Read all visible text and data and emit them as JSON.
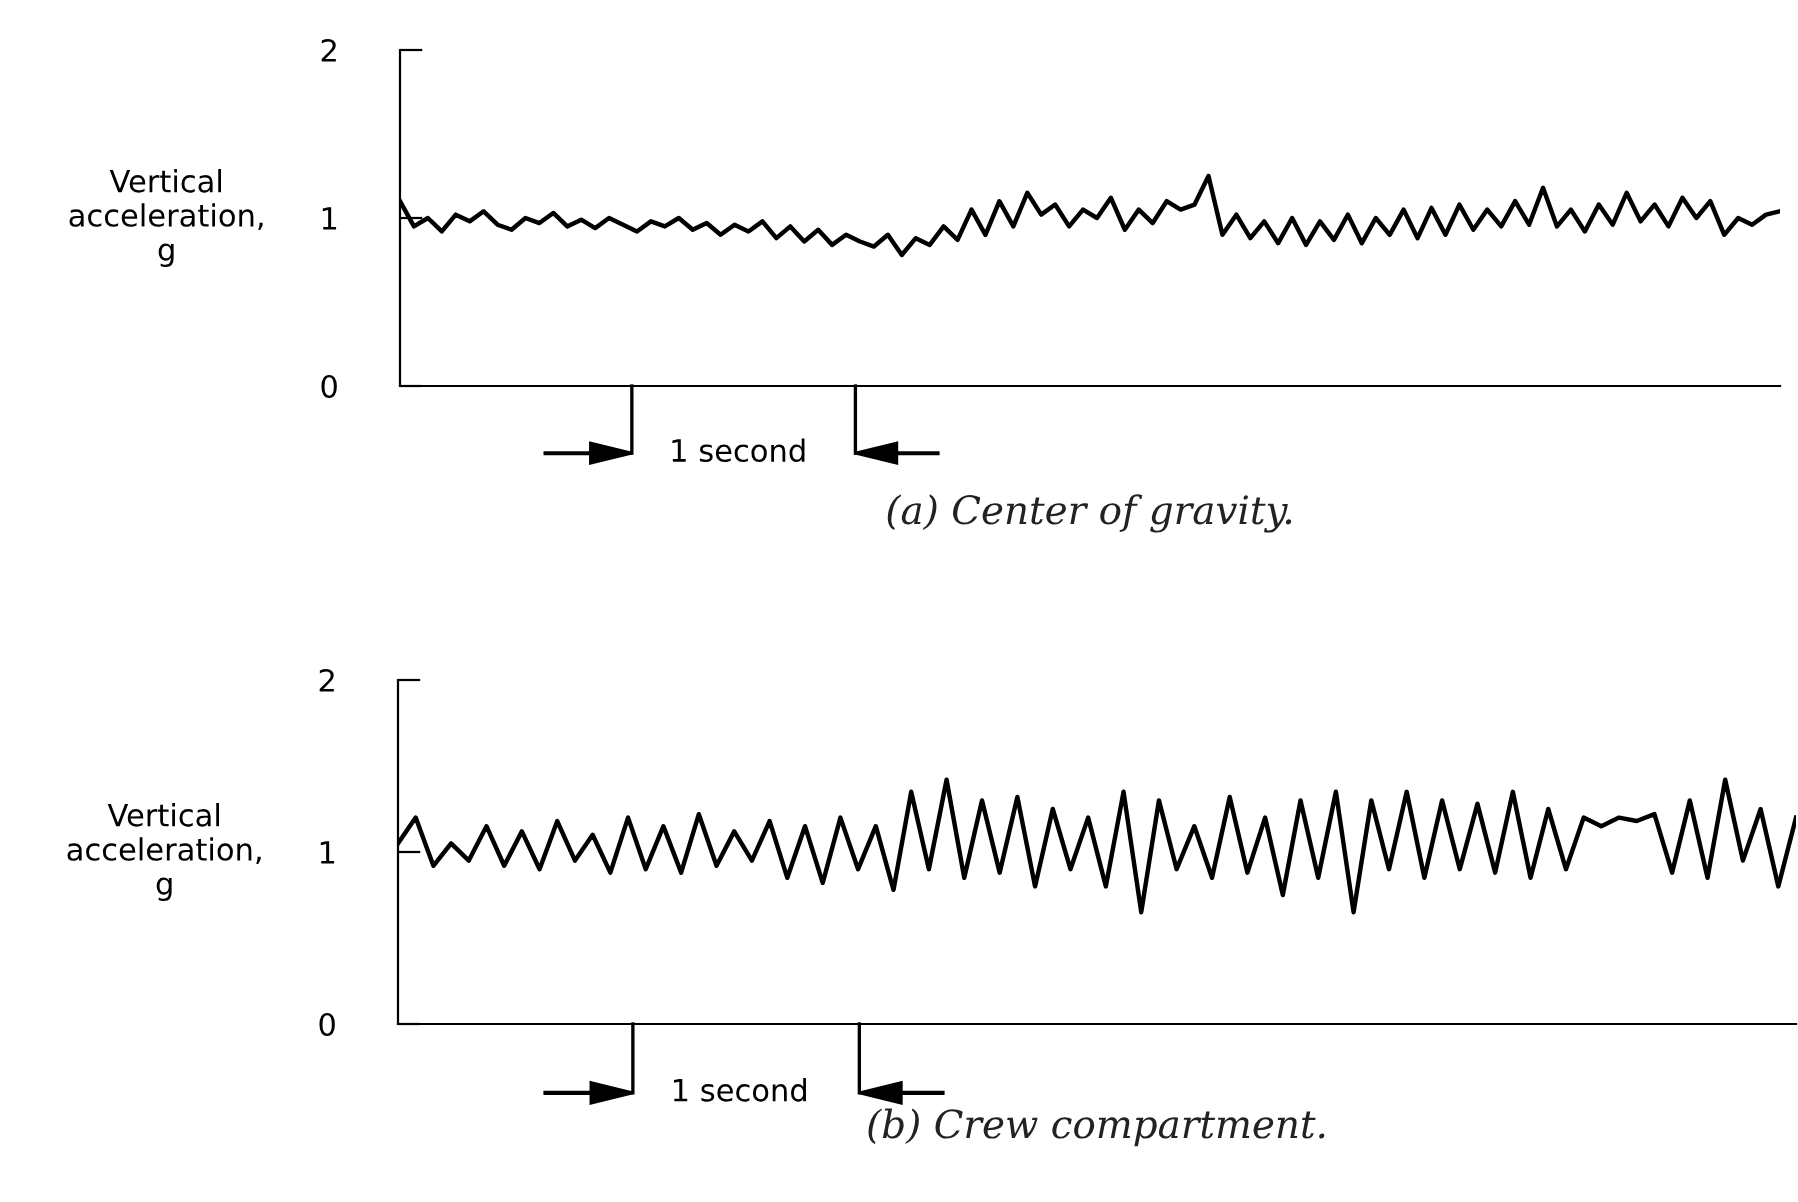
{
  "chart_data": [
    {
      "type": "line",
      "ylabel": "Vertical\nacceleration,\ng",
      "title": "(a) Center of gravity.",
      "annotations": [
        "1 second"
      ],
      "ylim": [
        0,
        2
      ],
      "yticks": [
        0,
        1,
        2
      ],
      "tick_labels": "y",
      "categories": [
        null,
        null,
        null,
        null,
        null,
        null,
        null,
        null,
        null,
        null,
        null,
        null,
        null,
        null,
        null,
        null,
        null,
        null,
        null,
        null,
        null,
        null,
        null,
        null,
        null,
        null,
        null,
        null,
        null,
        null,
        null,
        null,
        null,
        null,
        null,
        null,
        null,
        null,
        null,
        null,
        null,
        null,
        null,
        null,
        null,
        null,
        null,
        null,
        null,
        null,
        null,
        null,
        null,
        null,
        null,
        null,
        null,
        null,
        null,
        null,
        null,
        null,
        null,
        null,
        null,
        null,
        null,
        null,
        null,
        null,
        null,
        null,
        null,
        null,
        null,
        null,
        null,
        null,
        null,
        null,
        null,
        null,
        null,
        null,
        null,
        null,
        null,
        null,
        null,
        null,
        null,
        null,
        null,
        null,
        null,
        null,
        null,
        null,
        null,
        null
      ],
      "series": [
        {
          "color": "#000000",
          "values": [
            1.1,
            0.95,
            1.0,
            0.92,
            1.02,
            0.98,
            1.04,
            0.96,
            0.93,
            1.0,
            0.97,
            1.03,
            0.95,
            0.99,
            0.94,
            1.0,
            0.96,
            0.92,
            0.98,
            0.95,
            1.0,
            0.93,
            0.97,
            0.9,
            0.96,
            0.92,
            0.98,
            0.88,
            0.95,
            0.86,
            0.93,
            0.84,
            0.9,
            0.86,
            0.83,
            0.9,
            0.78,
            0.88,
            0.84,
            0.95,
            0.87,
            1.05,
            0.9,
            1.1,
            0.95,
            1.15,
            1.02,
            1.08,
            0.95,
            1.05,
            1.0,
            1.12,
            0.93,
            1.05,
            0.97,
            1.1,
            1.05,
            1.08,
            1.25,
            0.9,
            1.02,
            0.88,
            0.98,
            0.85,
            1.0,
            0.84,
            0.98,
            0.87,
            1.02,
            0.85,
            1.0,
            0.9,
            1.05,
            0.88,
            1.06,
            0.9,
            1.08,
            0.93,
            1.05,
            0.95,
            1.1,
            0.96,
            1.18,
            0.95,
            1.05,
            0.92,
            1.08,
            0.96,
            1.15,
            0.98,
            1.08,
            0.95,
            1.12,
            1.0,
            1.1,
            0.9,
            1.0,
            0.96,
            1.02,
            1.04
          ]
        }
      ]
    },
    {
      "type": "line",
      "ylabel": "Vertical\nacceleration,\ng",
      "title": "(b) Crew compartment.",
      "annotations": [
        "1 second"
      ],
      "ylim": [
        0,
        2
      ],
      "yticks": [
        0,
        1,
        2
      ],
      "tick_labels": "y",
      "categories": [
        null,
        null,
        null,
        null,
        null,
        null,
        null,
        null,
        null,
        null,
        null,
        null,
        null,
        null,
        null,
        null,
        null,
        null,
        null,
        null,
        null,
        null,
        null,
        null,
        null,
        null,
        null,
        null,
        null,
        null,
        null,
        null,
        null,
        null,
        null,
        null,
        null,
        null,
        null,
        null,
        null,
        null,
        null,
        null,
        null,
        null,
        null,
        null,
        null,
        null,
        null,
        null,
        null,
        null,
        null,
        null,
        null,
        null,
        null,
        null,
        null,
        null,
        null,
        null,
        null,
        null,
        null,
        null,
        null,
        null,
        null,
        null,
        null,
        null,
        null,
        null,
        null,
        null,
        null,
        null
      ],
      "series": [
        {
          "color": "#000000",
          "values": [
            1.05,
            1.2,
            0.92,
            1.05,
            0.95,
            1.15,
            0.92,
            1.12,
            0.9,
            1.18,
            0.95,
            1.1,
            0.88,
            1.2,
            0.9,
            1.15,
            0.88,
            1.22,
            0.92,
            1.12,
            0.95,
            1.18,
            0.85,
            1.15,
            0.82,
            1.2,
            0.9,
            1.15,
            0.78,
            1.35,
            0.9,
            1.42,
            0.85,
            1.3,
            0.88,
            1.32,
            0.8,
            1.25,
            0.9,
            1.2,
            0.8,
            1.35,
            0.65,
            1.3,
            0.9,
            1.15,
            0.85,
            1.32,
            0.88,
            1.2,
            0.75,
            1.3,
            0.85,
            1.35,
            0.65,
            1.3,
            0.9,
            1.35,
            0.85,
            1.3,
            0.9,
            1.28,
            0.88,
            1.35,
            0.85,
            1.25,
            0.9,
            1.2,
            1.15,
            1.2,
            1.18,
            1.22,
            0.88,
            1.3,
            0.85,
            1.42,
            0.95,
            1.25,
            0.8,
            1.2
          ]
        }
      ]
    }
  ]
}
